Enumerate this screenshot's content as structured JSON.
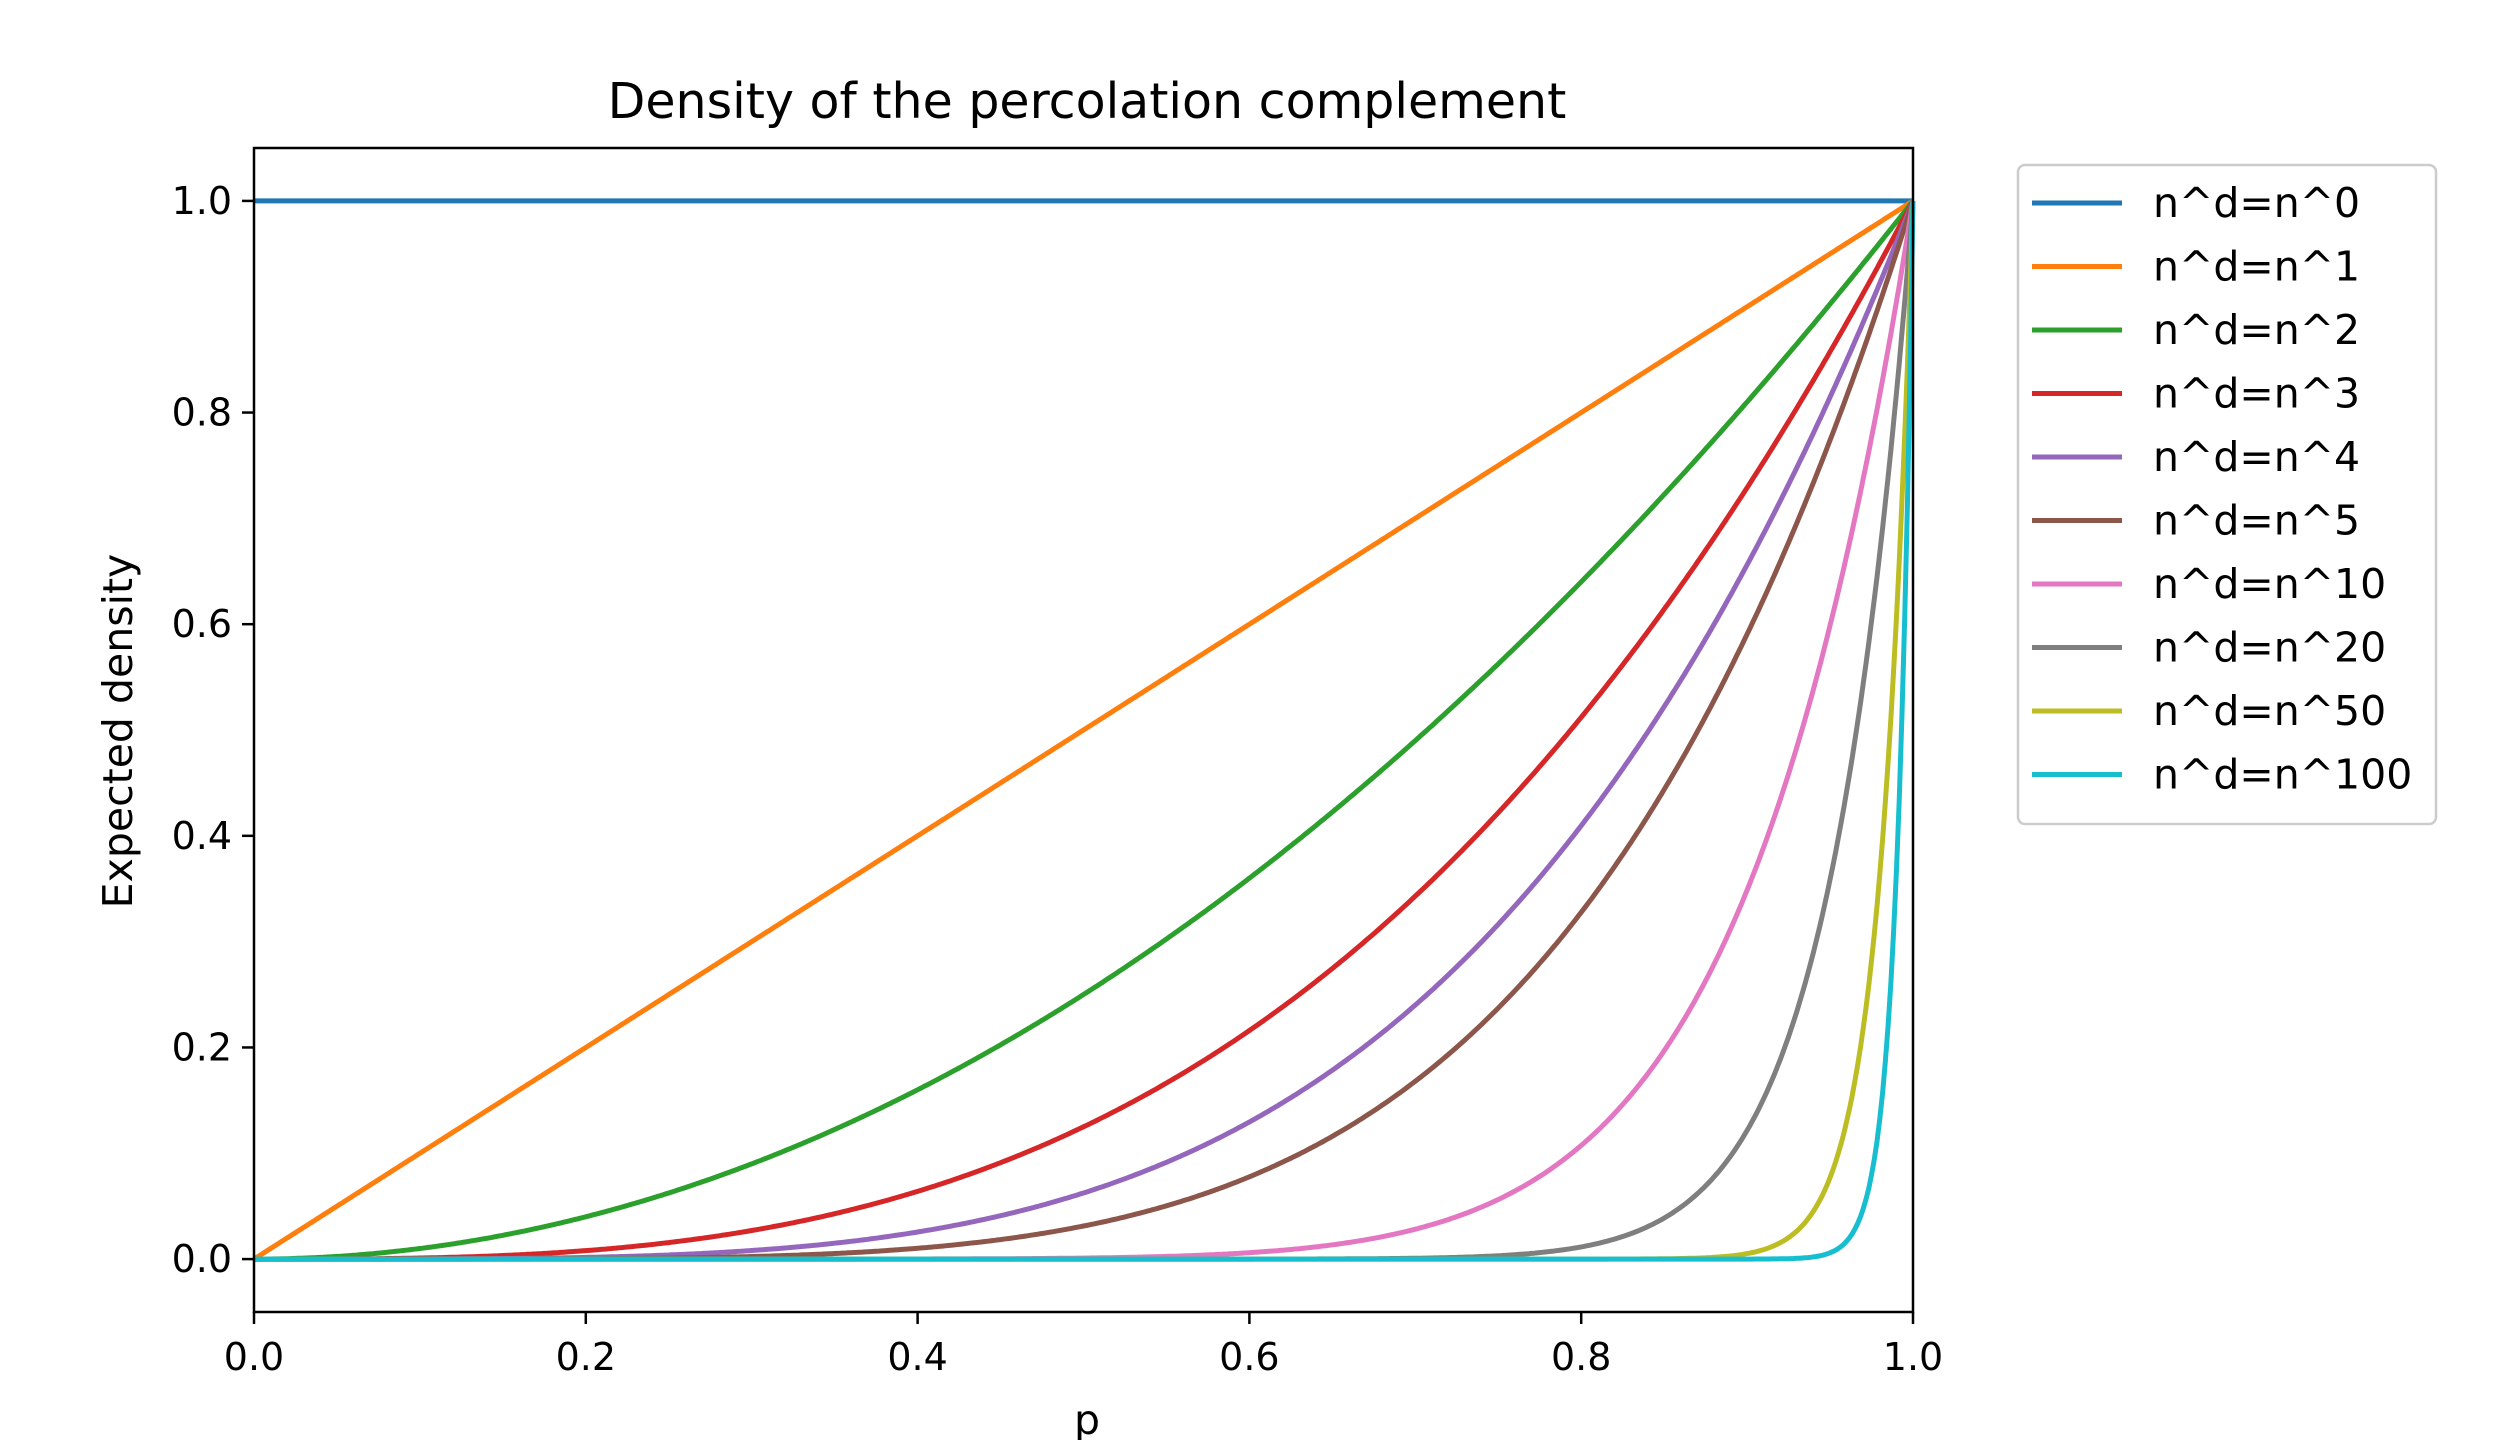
{
  "chart_data": {
    "type": "line",
    "title": "Density of the percolation complement",
    "xlabel": "p",
    "ylabel": "Expected density",
    "xlim": [
      0.0,
      1.0
    ],
    "ylim": [
      -0.05,
      1.05
    ],
    "xticks": [
      "0.0",
      "0.2",
      "0.4",
      "0.6",
      "0.8",
      "1.0"
    ],
    "yticks": [
      "0.0",
      "0.2",
      "0.4",
      "0.6",
      "0.8",
      "1.0"
    ],
    "grid": false,
    "legend_position": "outside-right-top",
    "x": [
      0.0,
      0.05,
      0.1,
      0.15,
      0.2,
      0.25,
      0.3,
      0.35,
      0.4,
      0.45,
      0.5,
      0.55,
      0.6,
      0.65,
      0.7,
      0.75,
      0.8,
      0.85,
      0.9,
      0.95,
      1.0
    ],
    "series": [
      {
        "name": "n^d=n^0",
        "color": "#1f77b4",
        "values": [
          1,
          1,
          1,
          1,
          1,
          1,
          1,
          1,
          1,
          1,
          1,
          1,
          1,
          1,
          1,
          1,
          1,
          1,
          1,
          1,
          1
        ]
      },
      {
        "name": "n^d=n^1",
        "color": "#ff7f0e",
        "values": [
          0.0,
          0.05,
          0.1,
          0.15,
          0.2,
          0.25,
          0.3,
          0.35,
          0.4,
          0.45,
          0.5,
          0.55,
          0.6,
          0.65,
          0.7,
          0.75,
          0.8,
          0.85,
          0.9,
          0.95,
          1.0
        ]
      },
      {
        "name": "n^d=n^2",
        "color": "#2ca02c",
        "values": [
          0.0,
          0.0025,
          0.01,
          0.0225,
          0.04,
          0.0625,
          0.09,
          0.1225,
          0.16,
          0.2025,
          0.25,
          0.3025,
          0.36,
          0.4225,
          0.49,
          0.5625,
          0.64,
          0.7225,
          0.81,
          0.9025,
          1.0
        ]
      },
      {
        "name": "n^d=n^3",
        "color": "#d62728",
        "values": [
          0.0,
          0.0001,
          0.001,
          0.0034,
          0.008,
          0.0156,
          0.027,
          0.0429,
          0.064,
          0.0911,
          0.125,
          0.1664,
          0.216,
          0.2746,
          0.343,
          0.4219,
          0.512,
          0.6141,
          0.729,
          0.8574,
          1.0
        ]
      },
      {
        "name": "n^d=n^4",
        "color": "#9467bd",
        "values": [
          0.0,
          0.0,
          0.0001,
          0.0005,
          0.0016,
          0.0039,
          0.0081,
          0.015,
          0.0256,
          0.041,
          0.0625,
          0.0915,
          0.1296,
          0.1785,
          0.2401,
          0.3164,
          0.4096,
          0.522,
          0.6561,
          0.8145,
          1.0
        ]
      },
      {
        "name": "n^d=n^5",
        "color": "#8c564b",
        "values": [
          0.0,
          0.0,
          0.0,
          0.0001,
          0.0003,
          0.001,
          0.0024,
          0.0053,
          0.0102,
          0.0185,
          0.0313,
          0.0503,
          0.0778,
          0.116,
          0.1681,
          0.2373,
          0.3277,
          0.4437,
          0.5905,
          0.7738,
          1.0
        ]
      },
      {
        "name": "n^d=n^10",
        "color": "#e377c2",
        "values": [
          0.0,
          0.0,
          0.0,
          0.0,
          0.0,
          0.0,
          0.0,
          0.0,
          0.0001,
          0.0003,
          0.001,
          0.0025,
          0.006,
          0.0135,
          0.0282,
          0.0563,
          0.1074,
          0.1969,
          0.3487,
          0.5987,
          1.0
        ]
      },
      {
        "name": "n^d=n^20",
        "color": "#7f7f7f",
        "values": [
          0.0,
          0.0,
          0.0,
          0.0,
          0.0,
          0.0,
          0.0,
          0.0,
          0.0,
          0.0,
          0.0,
          0.0,
          0.0,
          0.0002,
          0.0008,
          0.0032,
          0.0115,
          0.0388,
          0.1216,
          0.3585,
          1.0
        ]
      },
      {
        "name": "n^d=n^50",
        "color": "#bcbd22",
        "values": [
          0.0,
          0.0,
          0.0,
          0.0,
          0.0,
          0.0,
          0.0,
          0.0,
          0.0,
          0.0,
          0.0,
          0.0,
          0.0,
          0.0,
          0.0,
          0.0,
          0.0,
          0.0003,
          0.0052,
          0.0769,
          1.0
        ]
      },
      {
        "name": "n^d=n^100",
        "color": "#17becf",
        "values": [
          0.0,
          0.0,
          0.0,
          0.0,
          0.0,
          0.0,
          0.0,
          0.0,
          0.0,
          0.0,
          0.0,
          0.0,
          0.0,
          0.0,
          0.0,
          0.0,
          0.0,
          0.0,
          0.0,
          0.0059,
          1.0
        ]
      }
    ]
  }
}
